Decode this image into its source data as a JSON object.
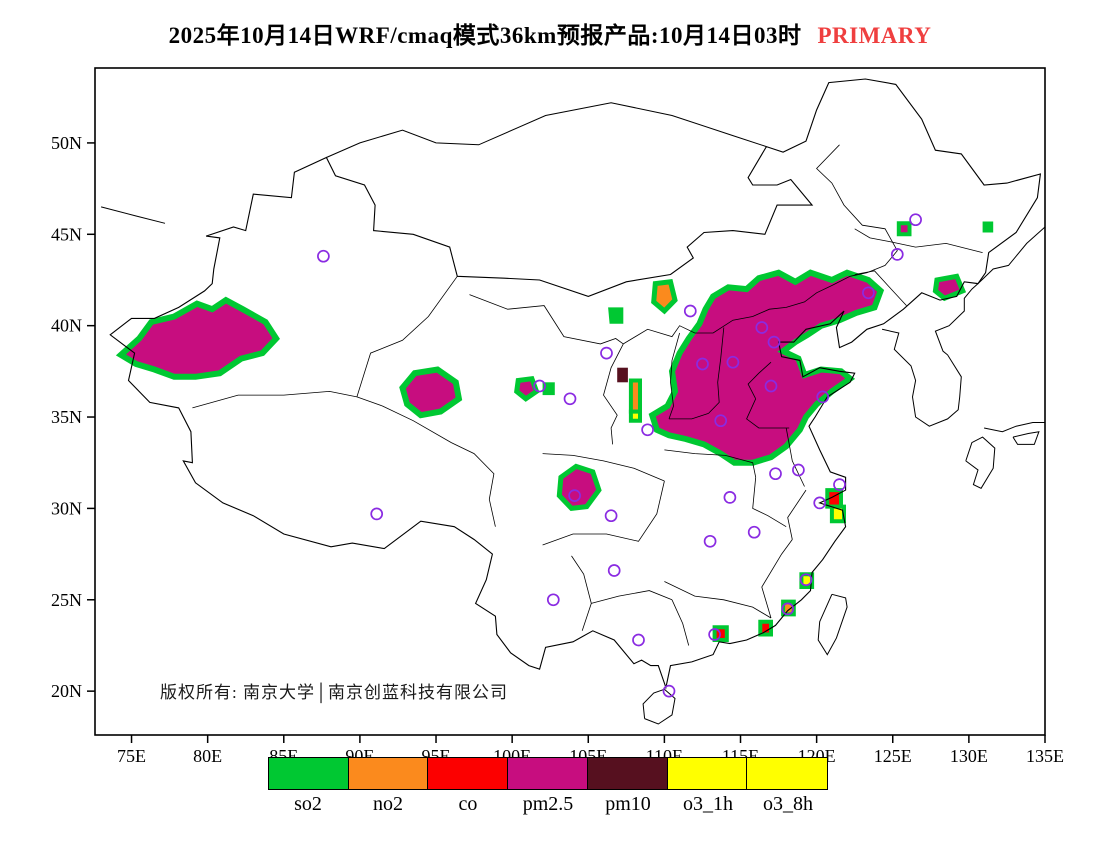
{
  "title": {
    "text": "2025年10月14日WRF/cmaq模式36km预报产品:10月14日03时",
    "tag": "PRIMARY",
    "tag_color": "#ef3f3f"
  },
  "copyright": {
    "text": "版权所有: 南京大学│南京创蓝科技有限公司"
  },
  "legend": {
    "items": [
      "so2",
      "no2",
      "co",
      "pm2.5",
      "pm10",
      "o3_1h",
      "o3_8h"
    ]
  },
  "chart_data": {
    "type": "heatmap",
    "title": "WRF/CMAQ 36km forecast: dominant primary pollutant, 2025-10-14 03h",
    "legend_position": "bottom",
    "grid": false,
    "axes": {
      "lon_min": 72.6,
      "lon_max": 135.0,
      "lat_min": 17.6,
      "lat_max": 54.1,
      "x_ticks": [
        {
          "v": 75,
          "label": "75E"
        },
        {
          "v": 80,
          "label": "80E"
        },
        {
          "v": 85,
          "label": "85E"
        },
        {
          "v": 90,
          "label": "90E"
        },
        {
          "v": 95,
          "label": "95E"
        },
        {
          "v": 100,
          "label": "100E"
        },
        {
          "v": 105,
          "label": "105E"
        },
        {
          "v": 110,
          "label": "110E"
        },
        {
          "v": 115,
          "label": "115E"
        },
        {
          "v": 120,
          "label": "120E"
        },
        {
          "v": 125,
          "label": "125E"
        },
        {
          "v": 130,
          "label": "130E"
        },
        {
          "v": 135,
          "label": "135E"
        }
      ],
      "y_ticks": [
        {
          "v": 20,
          "label": "20N"
        },
        {
          "v": 25,
          "label": "25N"
        },
        {
          "v": 30,
          "label": "30N"
        },
        {
          "v": 35,
          "label": "35N"
        },
        {
          "v": 40,
          "label": "40N"
        },
        {
          "v": 45,
          "label": "45N"
        },
        {
          "v": 50,
          "label": "50N"
        }
      ]
    },
    "pollutant_colors": {
      "so2": "#00c832",
      "no2": "#fb8a1d",
      "co": "#fc0000",
      "pm2.5": "#c70d7f",
      "pm10": "#56101f",
      "o3_1h": "#ffff00",
      "o3_8h": "#ffff00"
    },
    "regions": [
      {
        "pollutant": "pm2.5",
        "edge": "so2",
        "ew": 6,
        "points": [
          [
            74.3,
            38.4
          ],
          [
            75.5,
            39.3
          ],
          [
            76.3,
            40.2
          ],
          [
            77.8,
            40.5
          ],
          [
            79.3,
            41.2
          ],
          [
            80.3,
            40.9
          ],
          [
            81.2,
            41.4
          ],
          [
            82.3,
            40.9
          ],
          [
            83.8,
            40.2
          ],
          [
            84.5,
            39.3
          ],
          [
            83.6,
            38.5
          ],
          [
            82.2,
            38.2
          ],
          [
            80.8,
            37.4
          ],
          [
            79.2,
            37.2
          ],
          [
            77.8,
            37.2
          ],
          [
            76.5,
            37.6
          ],
          [
            75.3,
            37.9
          ]
        ]
      },
      {
        "pollutant": "pm2.5",
        "edge": "so2",
        "ew": 6,
        "points": [
          [
            92.8,
            36.6
          ],
          [
            93.6,
            37.4
          ],
          [
            95.1,
            37.6
          ],
          [
            96.3,
            36.9
          ],
          [
            96.5,
            36.0
          ],
          [
            95.3,
            35.3
          ],
          [
            94.0,
            35.1
          ],
          [
            93.1,
            35.7
          ]
        ]
      },
      {
        "pollutant": "pm2.5",
        "edge": "so2",
        "ew": 5,
        "points": [
          [
            100.4,
            37.0
          ],
          [
            101.3,
            37.1
          ],
          [
            101.6,
            36.4
          ],
          [
            100.9,
            36.0
          ],
          [
            100.3,
            36.4
          ]
        ]
      },
      {
        "pollutant": "so2",
        "ew": 0,
        "points": [
          [
            102.0,
            36.9
          ],
          [
            102.8,
            36.9
          ],
          [
            102.8,
            36.2
          ],
          [
            102.0,
            36.2
          ]
        ]
      },
      {
        "pollutant": "pm2.5",
        "edge": "so2",
        "ew": 6,
        "points": [
          [
            113.2,
            41.6
          ],
          [
            114.2,
            42.1
          ],
          [
            115.4,
            42.0
          ],
          [
            116.2,
            42.6
          ],
          [
            117.5,
            42.9
          ],
          [
            118.6,
            42.4
          ],
          [
            119.6,
            42.9
          ],
          [
            121.0,
            42.5
          ],
          [
            122.0,
            42.9
          ],
          [
            123.4,
            42.5
          ],
          [
            124.2,
            41.9
          ],
          [
            123.8,
            41.0
          ],
          [
            122.6,
            40.7
          ],
          [
            121.5,
            40.3
          ],
          [
            120.3,
            40.0
          ],
          [
            119.4,
            39.5
          ],
          [
            118.6,
            39.1
          ],
          [
            117.8,
            38.6
          ],
          [
            118.8,
            38.2
          ],
          [
            119.2,
            37.3
          ],
          [
            120.3,
            37.6
          ],
          [
            121.6,
            37.5
          ],
          [
            122.2,
            37.1
          ],
          [
            121.0,
            36.4
          ],
          [
            120.0,
            35.7
          ],
          [
            119.3,
            35.0
          ],
          [
            118.9,
            34.3
          ],
          [
            118.0,
            33.4
          ],
          [
            117.0,
            32.8
          ],
          [
            115.8,
            32.5
          ],
          [
            114.6,
            32.5
          ],
          [
            113.7,
            33.0
          ],
          [
            112.6,
            33.5
          ],
          [
            111.4,
            33.8
          ],
          [
            110.3,
            34.0
          ],
          [
            109.5,
            34.3
          ],
          [
            109.2,
            35.1
          ],
          [
            110.2,
            35.6
          ],
          [
            110.7,
            36.4
          ],
          [
            110.5,
            37.5
          ],
          [
            111.0,
            38.5
          ],
          [
            111.6,
            39.3
          ],
          [
            112.3,
            40.1
          ],
          [
            112.7,
            40.9
          ]
        ]
      },
      {
        "pollutant": "pm2.5",
        "edge": "so2",
        "ew": 5,
        "points": [
          [
            103.2,
            31.7
          ],
          [
            104.2,
            32.3
          ],
          [
            105.3,
            32.0
          ],
          [
            105.7,
            31.0
          ],
          [
            104.9,
            30.1
          ],
          [
            103.9,
            30.0
          ],
          [
            103.1,
            30.7
          ]
        ]
      },
      {
        "pollutant": "no2",
        "edge": "so2",
        "ew": 5,
        "points": [
          [
            109.4,
            42.3
          ],
          [
            110.4,
            42.4
          ],
          [
            110.7,
            41.4
          ],
          [
            110.0,
            40.8
          ],
          [
            109.3,
            41.3
          ]
        ]
      },
      {
        "pollutant": "so2",
        "ew": 0,
        "points": [
          [
            106.3,
            41.0
          ],
          [
            107.3,
            41.0
          ],
          [
            107.3,
            40.1
          ],
          [
            106.4,
            40.1
          ]
        ]
      },
      {
        "pollutant": "no2",
        "edge": "so2",
        "ew": 4,
        "points": [
          [
            107.8,
            37.0
          ],
          [
            108.4,
            37.0
          ],
          [
            108.4,
            35.3
          ],
          [
            107.8,
            35.3
          ]
        ]
      },
      {
        "pollutant": "o3_1h",
        "edge": "so2",
        "ew": 4,
        "points": [
          [
            107.8,
            35.3
          ],
          [
            108.4,
            35.3
          ],
          [
            108.4,
            34.8
          ],
          [
            107.8,
            34.8
          ]
        ]
      },
      {
        "pollutant": "pm10",
        "ew": 0,
        "points": [
          [
            106.9,
            37.7
          ],
          [
            107.6,
            37.7
          ],
          [
            107.6,
            36.9
          ],
          [
            106.9,
            36.9
          ]
        ]
      },
      {
        "pollutant": "pm2.5",
        "edge": "so2",
        "ew": 5,
        "points": [
          [
            127.9,
            42.5
          ],
          [
            129.2,
            42.7
          ],
          [
            129.6,
            41.9
          ],
          [
            128.4,
            41.5
          ],
          [
            127.8,
            41.9
          ]
        ]
      },
      {
        "pollutant": "pm2.5",
        "edge": "so2",
        "ew": 4,
        "points": [
          [
            125.4,
            45.6
          ],
          [
            126.1,
            45.6
          ],
          [
            126.1,
            45.0
          ],
          [
            125.4,
            45.0
          ]
        ]
      },
      {
        "pollutant": "so2",
        "ew": 0,
        "points": [
          [
            130.9,
            45.7
          ],
          [
            131.6,
            45.7
          ],
          [
            131.6,
            45.1
          ],
          [
            130.9,
            45.1
          ]
        ]
      },
      {
        "pollutant": "co",
        "edge": "so2",
        "ew": 4,
        "points": [
          [
            120.7,
            31.0
          ],
          [
            121.6,
            31.0
          ],
          [
            121.6,
            30.1
          ],
          [
            120.7,
            30.1
          ]
        ]
      },
      {
        "pollutant": "o3_1h",
        "edge": "so2",
        "ew": 4,
        "points": [
          [
            121.0,
            30.1
          ],
          [
            121.8,
            30.1
          ],
          [
            121.8,
            29.3
          ],
          [
            121.0,
            29.3
          ]
        ]
      },
      {
        "pollutant": "o3_1h",
        "edge": "so2",
        "ew": 4,
        "points": [
          [
            119.0,
            26.4
          ],
          [
            119.7,
            26.4
          ],
          [
            119.7,
            25.7
          ],
          [
            119.0,
            25.7
          ]
        ]
      },
      {
        "pollutant": "no2",
        "edge": "so2",
        "ew": 4,
        "points": [
          [
            117.8,
            24.9
          ],
          [
            118.5,
            24.9
          ],
          [
            118.5,
            24.2
          ],
          [
            117.8,
            24.2
          ]
        ]
      },
      {
        "pollutant": "co",
        "edge": "so2",
        "ew": 4,
        "points": [
          [
            116.3,
            23.8
          ],
          [
            117.0,
            23.8
          ],
          [
            117.0,
            23.1
          ],
          [
            116.3,
            23.1
          ]
        ]
      },
      {
        "pollutant": "co",
        "edge": "so2",
        "ew": 4,
        "points": [
          [
            113.3,
            23.5
          ],
          [
            114.1,
            23.5
          ],
          [
            114.1,
            22.8
          ],
          [
            113.3,
            22.8
          ]
        ]
      }
    ],
    "city_markers": {
      "color": "#8a2be2",
      "points": [
        [
          87.6,
          43.8
        ],
        [
          91.1,
          29.7
        ],
        [
          101.8,
          36.7
        ],
        [
          103.8,
          36.0
        ],
        [
          106.2,
          38.5
        ],
        [
          111.7,
          40.8
        ],
        [
          112.5,
          37.9
        ],
        [
          108.9,
          34.3
        ],
        [
          113.7,
          34.8
        ],
        [
          116.4,
          39.9
        ],
        [
          117.2,
          39.1
        ],
        [
          114.5,
          38.0
        ],
        [
          117.0,
          36.7
        ],
        [
          120.4,
          36.1
        ],
        [
          123.4,
          41.8
        ],
        [
          125.3,
          43.9
        ],
        [
          126.5,
          45.8
        ],
        [
          117.3,
          31.9
        ],
        [
          118.8,
          32.1
        ],
        [
          121.5,
          31.3
        ],
        [
          120.2,
          30.3
        ],
        [
          114.3,
          30.6
        ],
        [
          104.1,
          30.7
        ],
        [
          106.5,
          29.6
        ],
        [
          113.0,
          28.2
        ],
        [
          115.9,
          28.7
        ],
        [
          106.7,
          26.6
        ],
        [
          102.7,
          25.0
        ],
        [
          119.3,
          26.1
        ],
        [
          118.1,
          24.5
        ],
        [
          113.3,
          23.1
        ],
        [
          108.3,
          22.8
        ],
        [
          110.3,
          20.0
        ]
      ]
    }
  }
}
